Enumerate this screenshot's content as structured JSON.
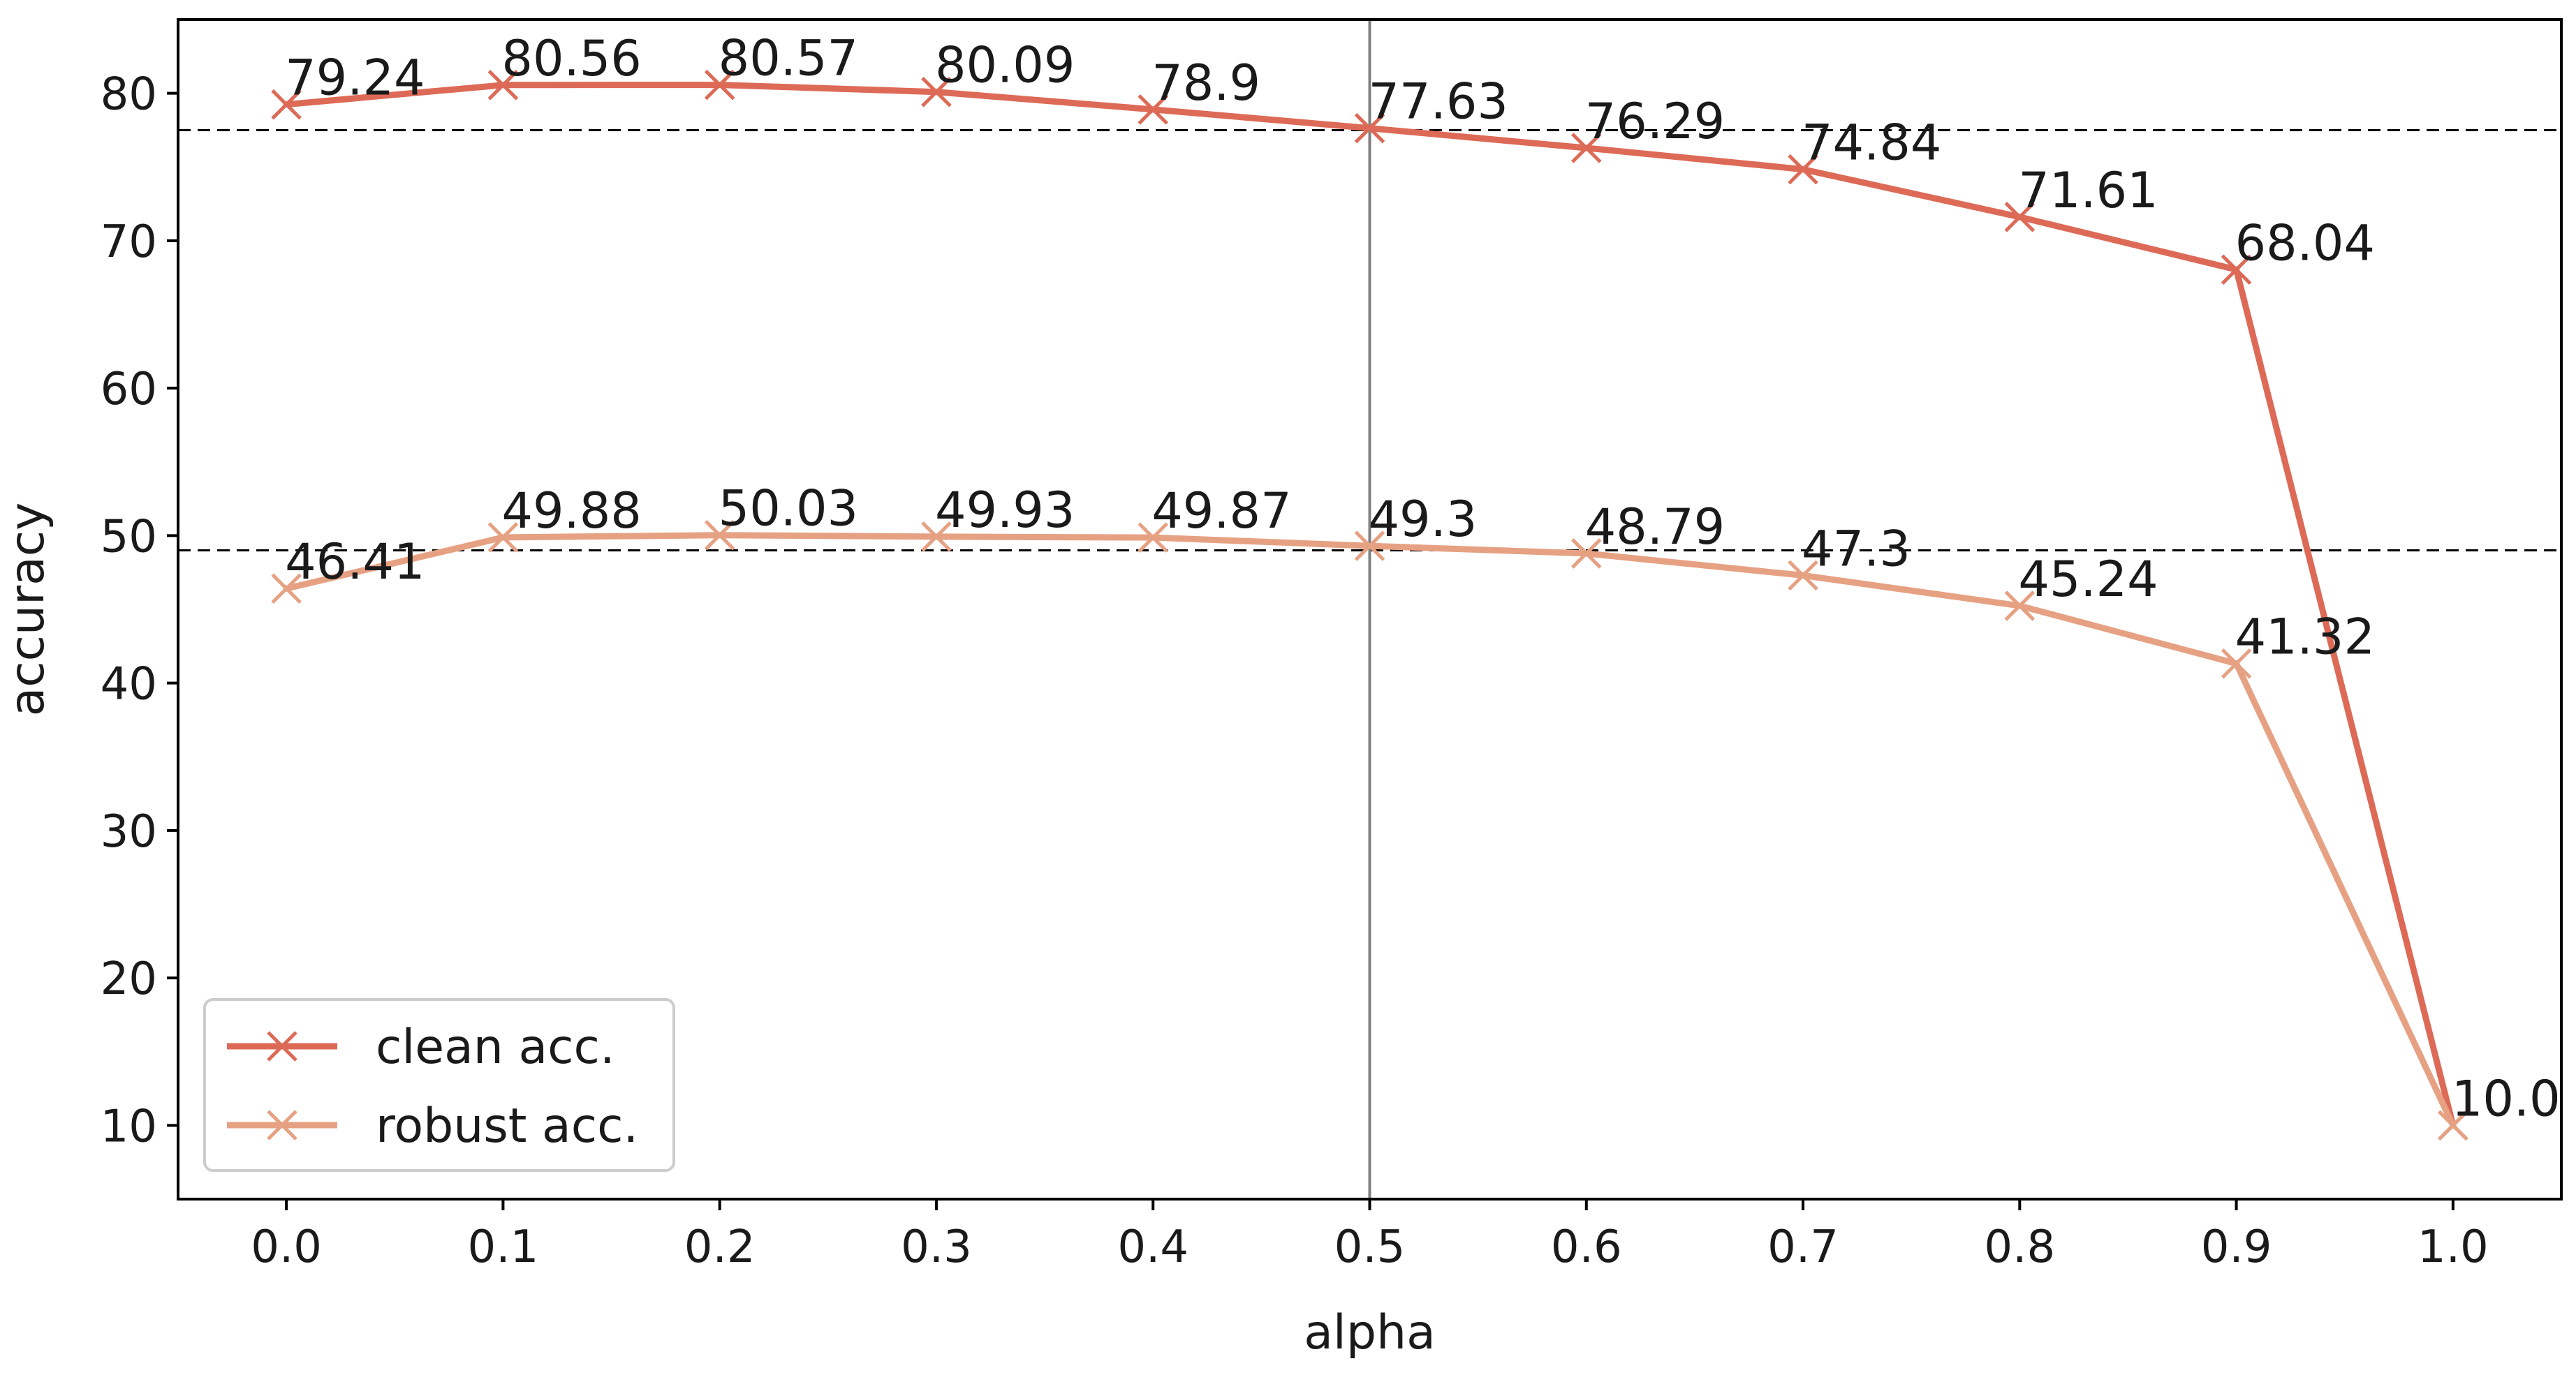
{
  "chart_data": {
    "type": "line",
    "title": "",
    "xlabel": "alpha",
    "ylabel": "accuracy",
    "x": [
      0.0,
      0.1,
      0.2,
      0.3,
      0.4,
      0.5,
      0.6,
      0.7,
      0.8,
      0.9,
      1.0
    ],
    "x_tick_labels": [
      "0.0",
      "0.1",
      "0.2",
      "0.3",
      "0.4",
      "0.5",
      "0.6",
      "0.7",
      "0.8",
      "0.9",
      "1.0"
    ],
    "y_ticks": [
      10,
      20,
      30,
      40,
      50,
      60,
      70,
      80
    ],
    "xlim": [
      -0.05,
      1.05
    ],
    "ylim": [
      5,
      85
    ],
    "grid": false,
    "legend_position": "lower-left",
    "series": [
      {
        "name": "clean acc.",
        "color": "#dd6a57",
        "marker": "x",
        "values": [
          79.24,
          80.56,
          80.57,
          80.09,
          78.9,
          77.63,
          76.29,
          74.84,
          71.61,
          68.04,
          10.0
        ],
        "labels": [
          "79.24",
          "80.56",
          "80.57",
          "80.09",
          "78.9",
          "77.63",
          "76.29",
          "74.84",
          "71.61",
          "68.04",
          "10.0"
        ]
      },
      {
        "name": "robust acc.",
        "color": "#e6a183",
        "marker": "x",
        "values": [
          46.41,
          49.88,
          50.03,
          49.93,
          49.87,
          49.3,
          48.79,
          47.3,
          45.24,
          41.32,
          10.0
        ],
        "labels": [
          "46.41",
          "49.88",
          "50.03",
          "49.93",
          "49.87",
          "49.3",
          "48.79",
          "47.3",
          "45.24",
          "41.32",
          "10.0"
        ]
      }
    ],
    "reference_lines": {
      "horizontal": [
        77.5,
        49.0
      ],
      "vertical": [
        0.5
      ]
    }
  }
}
